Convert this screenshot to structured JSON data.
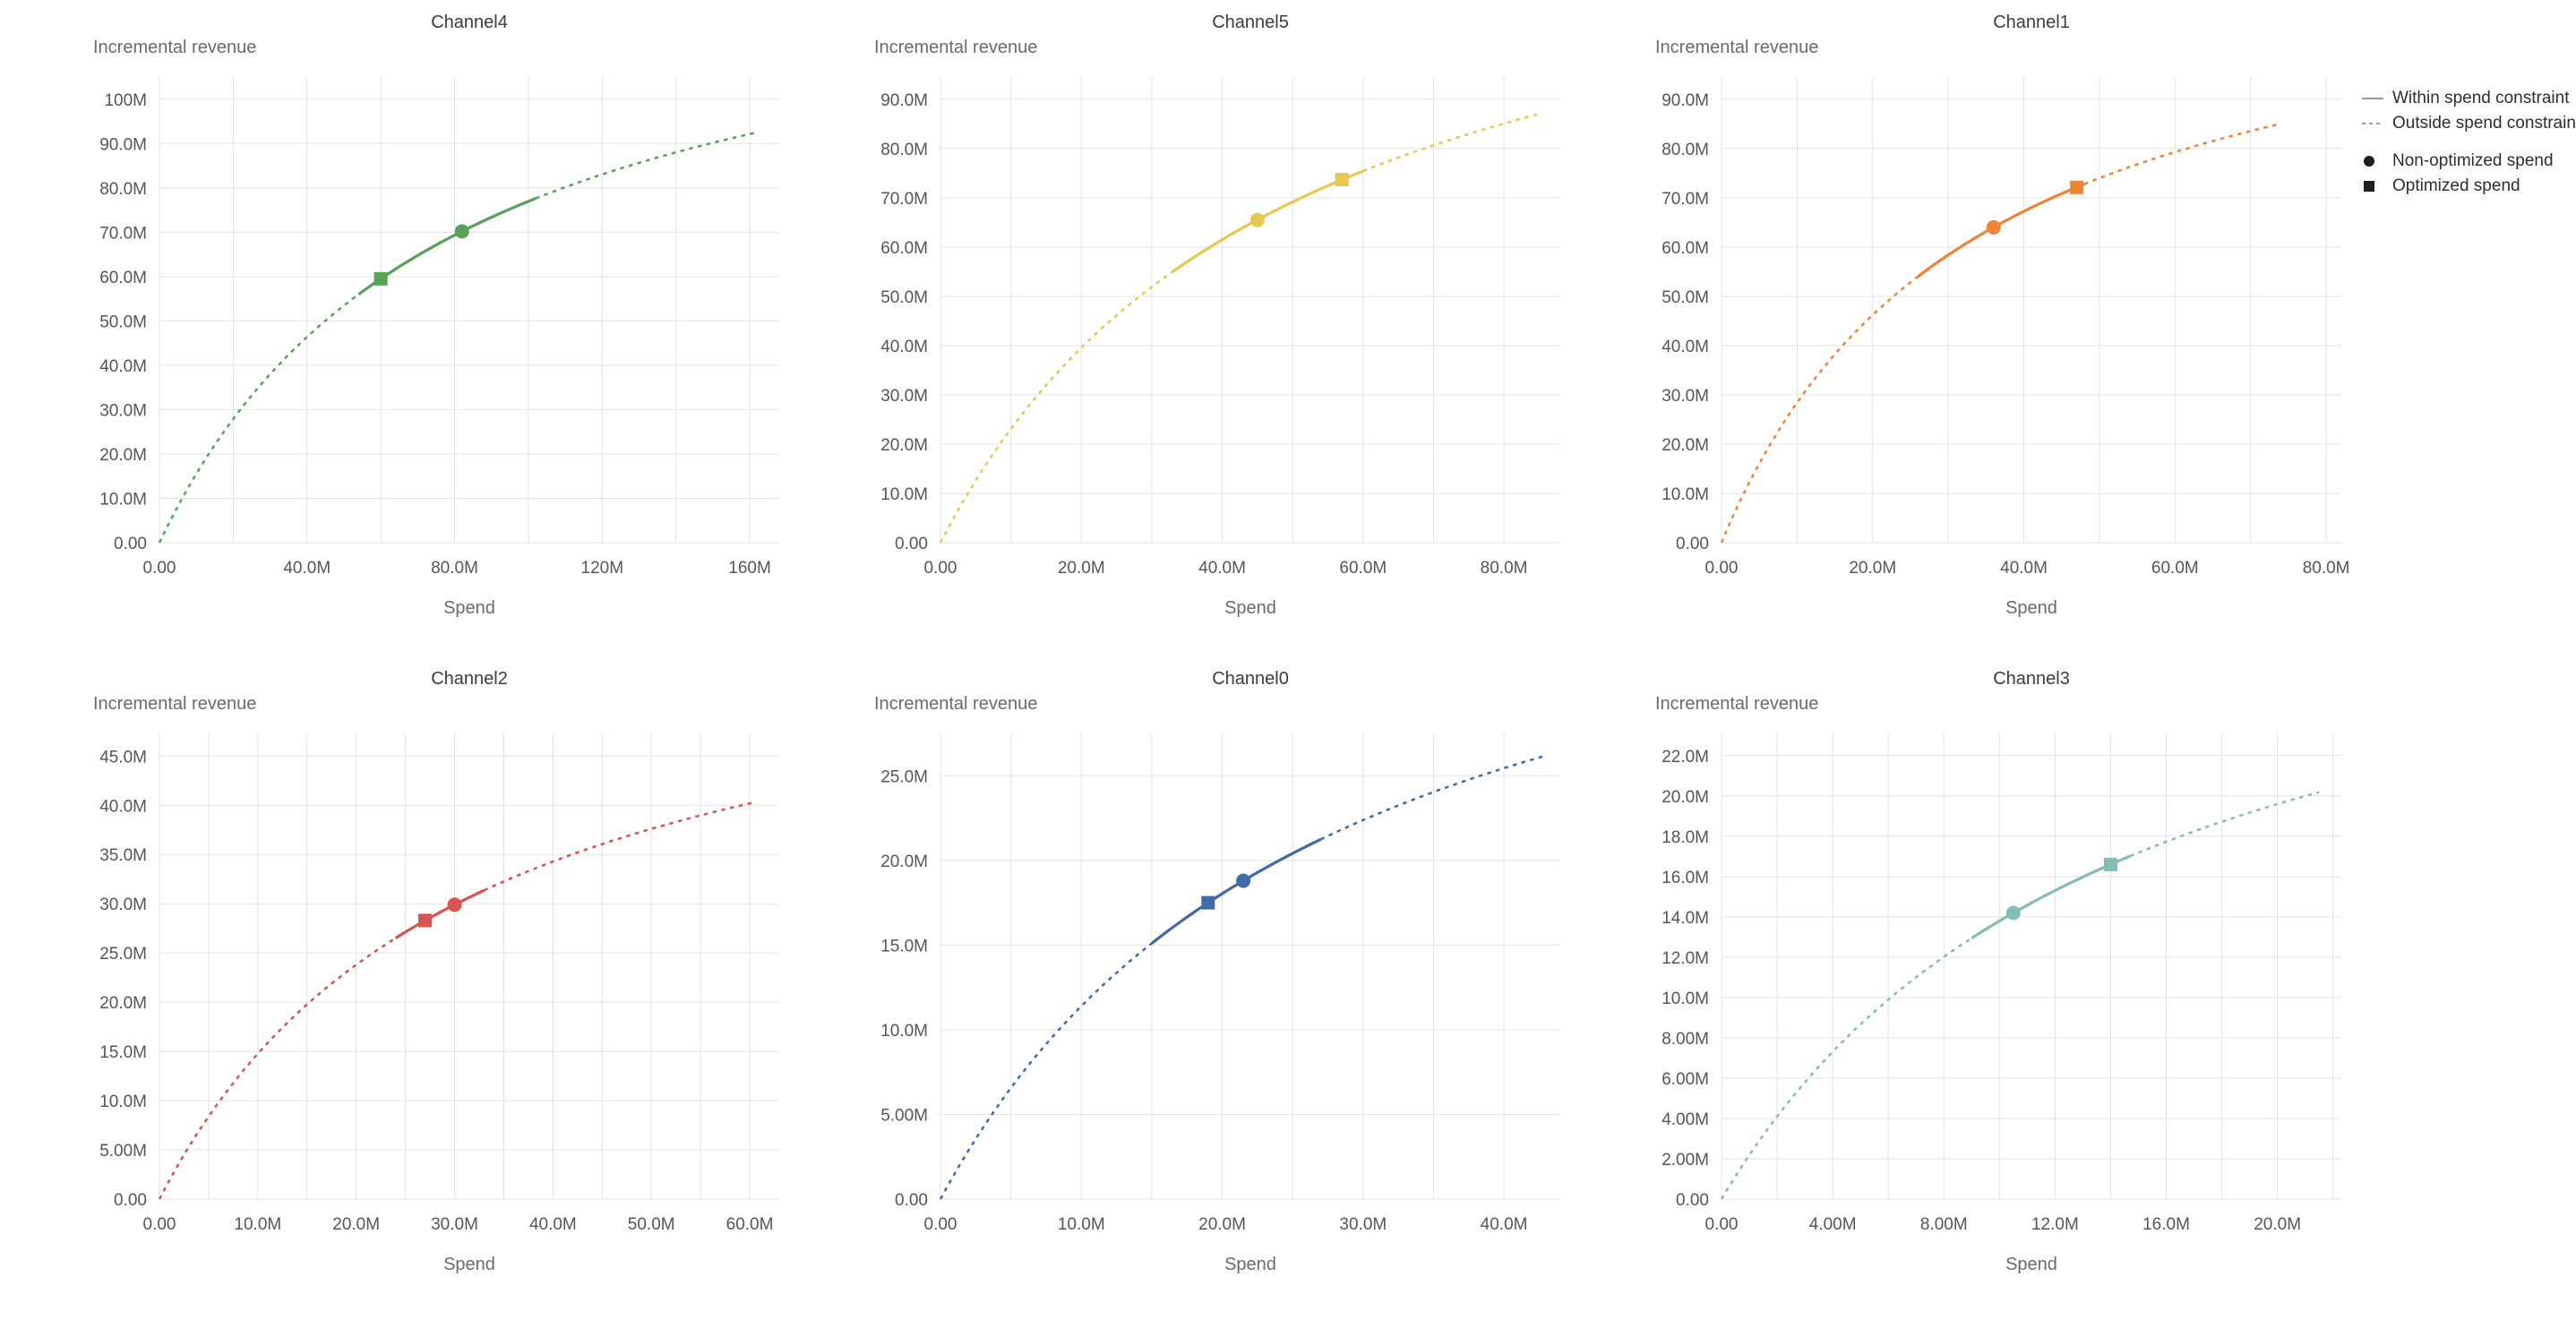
{
  "page": {
    "background": "#ffffff"
  },
  "legend": {
    "line_color": "#9a9a9a",
    "marker_color": "#1f1f1f",
    "line_items": [
      {
        "label": "Within spend constraint",
        "style": "solid"
      },
      {
        "label": "Outside spend constraint",
        "style": "dashed"
      }
    ],
    "marker_items": [
      {
        "label": "Non-optimized spend",
        "shape": "circle"
      },
      {
        "label": "Optimized spend",
        "shape": "square"
      }
    ]
  },
  "chart_data": [
    {
      "type": "line",
      "title": "Channel4",
      "ylabel": "Incremental revenue",
      "xlabel": "Spend",
      "color": "#57a15b",
      "units": "millions",
      "xlim": [
        0,
        168
      ],
      "ylim": [
        0,
        105
      ],
      "x_ticks": [
        {
          "v": 0,
          "label": "0.00"
        },
        {
          "v": 40,
          "label": "40.0M"
        },
        {
          "v": 80,
          "label": "80.0M"
        },
        {
          "v": 120,
          "label": "120M"
        },
        {
          "v": 160,
          "label": "160M"
        }
      ],
      "y_ticks": [
        {
          "v": 0,
          "label": "0.00"
        },
        {
          "v": 10,
          "label": "10.0M"
        },
        {
          "v": 20,
          "label": "20.0M"
        },
        {
          "v": 30,
          "label": "30.0M"
        },
        {
          "v": 40,
          "label": "40.0M"
        },
        {
          "v": 50,
          "label": "50.0M"
        },
        {
          "v": 60,
          "label": "60.0M"
        },
        {
          "v": 70,
          "label": "70.0M"
        },
        {
          "v": 80,
          "label": "80.0M"
        },
        {
          "v": 90,
          "label": "90.0M"
        },
        {
          "v": 100,
          "label": "100M"
        }
      ],
      "curve": {
        "formula": "y = vmax*x/(x+k)",
        "vmax": 137.3,
        "k": 78.4,
        "x_end": 162
      },
      "solid_range": [
        54,
        102
      ],
      "markers": {
        "non_optimized_spend": {
          "x": 82,
          "y": 70.2
        },
        "optimized_spend": {
          "x": 60,
          "y": 59.5
        }
      }
    },
    {
      "type": "line",
      "title": "Channel5",
      "ylabel": "Incremental revenue",
      "xlabel": "Spend",
      "color": "#e8c84f",
      "units": "millions",
      "xlim": [
        0,
        88
      ],
      "ylim": [
        0,
        94.5
      ],
      "x_ticks": [
        {
          "v": 0,
          "label": "0.00"
        },
        {
          "v": 20,
          "label": "20.0M"
        },
        {
          "v": 40,
          "label": "40.0M"
        },
        {
          "v": 60,
          "label": "60.0M"
        },
        {
          "v": 80,
          "label": "80.0M"
        }
      ],
      "y_ticks": [
        {
          "v": 0,
          "label": "0.00"
        },
        {
          "v": 10,
          "label": "10.0M"
        },
        {
          "v": 20,
          "label": "20.0M"
        },
        {
          "v": 30,
          "label": "30.0M"
        },
        {
          "v": 40,
          "label": "40.0M"
        },
        {
          "v": 50,
          "label": "50.0M"
        },
        {
          "v": 60,
          "label": "60.0M"
        },
        {
          "v": 70,
          "label": "70.0M"
        },
        {
          "v": 80,
          "label": "80.0M"
        },
        {
          "v": 90,
          "label": "90.0M"
        }
      ],
      "curve": {
        "formula": "y = vmax*x/(x+k)",
        "vmax": 137.9,
        "k": 49.7,
        "x_end": 85
      },
      "solid_range": [
        33,
        60
      ],
      "markers": {
        "non_optimized_spend": {
          "x": 45,
          "y": 65.5
        },
        "optimized_spend": {
          "x": 57,
          "y": 73.7
        }
      }
    },
    {
      "type": "line",
      "title": "Channel1",
      "ylabel": "Incremental revenue",
      "xlabel": "Spend",
      "color": "#ee8435",
      "units": "millions",
      "xlim": [
        0,
        82
      ],
      "ylim": [
        0,
        94.5
      ],
      "x_ticks": [
        {
          "v": 0,
          "label": "0.00"
        },
        {
          "v": 20,
          "label": "20.0M"
        },
        {
          "v": 40,
          "label": "40.0M"
        },
        {
          "v": 60,
          "label": "60.0M"
        },
        {
          "v": 80,
          "label": "80.0M"
        }
      ],
      "y_ticks": [
        {
          "v": 0,
          "label": "0.00"
        },
        {
          "v": 10,
          "label": "10.0M"
        },
        {
          "v": 20,
          "label": "20.0M"
        },
        {
          "v": 30,
          "label": "30.0M"
        },
        {
          "v": 40,
          "label": "40.0M"
        },
        {
          "v": 50,
          "label": "50.0M"
        },
        {
          "v": 60,
          "label": "60.0M"
        },
        {
          "v": 70,
          "label": "70.0M"
        },
        {
          "v": 80,
          "label": "80.0M"
        },
        {
          "v": 90,
          "label": "90.0M"
        }
      ],
      "curve": {
        "formula": "y = vmax*x/(x+k)",
        "vmax": 123.4,
        "k": 33.4,
        "x_end": 74
      },
      "solid_range": [
        26,
        48
      ],
      "markers": {
        "non_optimized_spend": {
          "x": 36,
          "y": 64.0
        },
        "optimized_spend": {
          "x": 47,
          "y": 72.1
        }
      }
    },
    {
      "type": "line",
      "title": "Channel2",
      "ylabel": "Incremental revenue",
      "xlabel": "Spend",
      "color": "#d95350",
      "units": "millions",
      "xlim": [
        0,
        63
      ],
      "ylim": [
        0,
        47.3
      ],
      "x_ticks": [
        {
          "v": 0,
          "label": "0.00"
        },
        {
          "v": 10,
          "label": "10.0M"
        },
        {
          "v": 20,
          "label": "20.0M"
        },
        {
          "v": 30,
          "label": "30.0M"
        },
        {
          "v": 40,
          "label": "40.0M"
        },
        {
          "v": 50,
          "label": "50.0M"
        },
        {
          "v": 60,
          "label": "60.0M"
        }
      ],
      "y_ticks": [
        {
          "v": 0,
          "label": "0.00"
        },
        {
          "v": 5,
          "label": "5.00M"
        },
        {
          "v": 10,
          "label": "10.0M"
        },
        {
          "v": 15,
          "label": "15.0M"
        },
        {
          "v": 20,
          "label": "20.0M"
        },
        {
          "v": 25,
          "label": "25.0M"
        },
        {
          "v": 30,
          "label": "30.0M"
        },
        {
          "v": 35,
          "label": "35.0M"
        },
        {
          "v": 40,
          "label": "40.0M"
        },
        {
          "v": 45,
          "label": "45.0M"
        }
      ],
      "curve": {
        "formula": "y = vmax*x/(x+k)",
        "vmax": 61.3,
        "k": 31.5,
        "x_end": 60.5
      },
      "solid_range": [
        24,
        33
      ],
      "markers": {
        "non_optimized_spend": {
          "x": 30,
          "y": 29.9
        },
        "optimized_spend": {
          "x": 27,
          "y": 28.3
        }
      }
    },
    {
      "type": "line",
      "title": "Channel0",
      "ylabel": "Incremental revenue",
      "xlabel": "Spend",
      "color": "#3f6ba6",
      "units": "millions",
      "xlim": [
        0,
        44
      ],
      "ylim": [
        0,
        27.5
      ],
      "x_ticks": [
        {
          "v": 0,
          "label": "0.00"
        },
        {
          "v": 10,
          "label": "10.0M"
        },
        {
          "v": 20,
          "label": "20.0M"
        },
        {
          "v": 30,
          "label": "30.0M"
        },
        {
          "v": 40,
          "label": "40.0M"
        }
      ],
      "y_ticks": [
        {
          "v": 0,
          "label": "0.00"
        },
        {
          "v": 5,
          "label": "5.00M"
        },
        {
          "v": 10,
          "label": "10.0M"
        },
        {
          "v": 15,
          "label": "15.0M"
        },
        {
          "v": 20,
          "label": "20.0M"
        },
        {
          "v": 25,
          "label": "25.0M"
        }
      ],
      "curve": {
        "formula": "y = vmax*x/(x+k)",
        "vmax": 43.2,
        "k": 27.9,
        "x_end": 43
      },
      "solid_range": [
        15,
        27
      ],
      "markers": {
        "non_optimized_spend": {
          "x": 21.5,
          "y": 18.8
        },
        "optimized_spend": {
          "x": 19,
          "y": 17.5
        }
      }
    },
    {
      "type": "line",
      "title": "Channel3",
      "ylabel": "Incremental revenue",
      "xlabel": "Spend",
      "color": "#84bdb3",
      "units": "millions",
      "xlim": [
        0,
        22.3
      ],
      "ylim": [
        0,
        23.1
      ],
      "x_ticks": [
        {
          "v": 0,
          "label": "0.00"
        },
        {
          "v": 4,
          "label": "4.00M"
        },
        {
          "v": 8,
          "label": "8.00M"
        },
        {
          "v": 12,
          "label": "12.0M"
        },
        {
          "v": 16,
          "label": "16.0M"
        },
        {
          "v": 20,
          "label": "20.0M"
        }
      ],
      "y_ticks": [
        {
          "v": 0,
          "label": "0.00"
        },
        {
          "v": 2,
          "label": "2.00M"
        },
        {
          "v": 4,
          "label": "4.00M"
        },
        {
          "v": 6,
          "label": "6.00M"
        },
        {
          "v": 8,
          "label": "8.00M"
        },
        {
          "v": 10,
          "label": "10.0M"
        },
        {
          "v": 12,
          "label": "12.0M"
        },
        {
          "v": 14,
          "label": "14.0M"
        },
        {
          "v": 16,
          "label": "16.0M"
        },
        {
          "v": 18,
          "label": "18.0M"
        },
        {
          "v": 20,
          "label": "20.0M"
        },
        {
          "v": 22,
          "label": "22.0M"
        }
      ],
      "curve": {
        "formula": "y = vmax*x/(x+k)",
        "vmax": 33.8,
        "k": 14.5,
        "x_end": 21.5
      },
      "solid_range": [
        9,
        14.7
      ],
      "markers": {
        "non_optimized_spend": {
          "x": 10.5,
          "y": 14.2
        },
        "optimized_spend": {
          "x": 14,
          "y": 16.6
        }
      }
    }
  ]
}
